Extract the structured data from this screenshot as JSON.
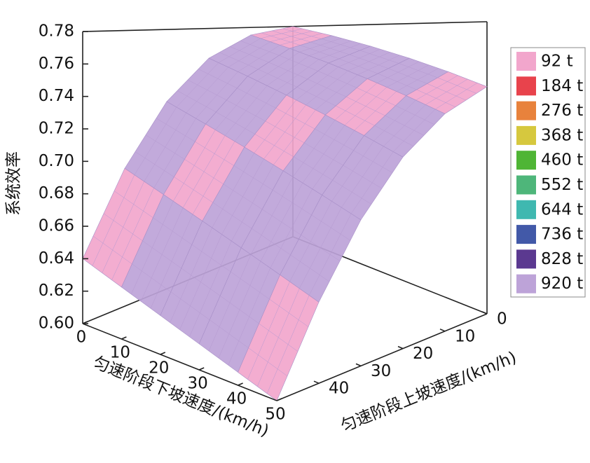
{
  "chart_data": {
    "type": "surface",
    "x_label": "匀速阶段下坡速度/(km/h)",
    "y_label": "匀速阶段上坡速度/(km/h)",
    "z_label": "系统效率",
    "x": [
      0,
      10,
      20,
      30,
      40,
      50
    ],
    "y": [
      0,
      10,
      20,
      30,
      40,
      50
    ],
    "z": [
      [
        0.78,
        0.772,
        0.764,
        0.756,
        0.748,
        0.74
      ],
      [
        0.774,
        0.766,
        0.758,
        0.75,
        0.742,
        0.734
      ],
      [
        0.758,
        0.75,
        0.742,
        0.734,
        0.726,
        0.718
      ],
      [
        0.73,
        0.722,
        0.714,
        0.706,
        0.698,
        0.69
      ],
      [
        0.69,
        0.682,
        0.674,
        0.666,
        0.658,
        0.65
      ],
      [
        0.64,
        0.632,
        0.624,
        0.616,
        0.608,
        0.6
      ]
    ],
    "xlim": [
      0,
      50
    ],
    "xticks": [
      0,
      10,
      20,
      30,
      40,
      50
    ],
    "ylim": [
      0,
      50
    ],
    "yticks": [
      0,
      10,
      20,
      30,
      40
    ],
    "zlim": [
      0.6,
      0.78
    ],
    "zticks": [
      {
        "value": 0.6,
        "label": "0.60"
      },
      0.62,
      0.64,
      0.66,
      0.68,
      {
        "value": 0.7,
        "label": "0.70"
      },
      0.72,
      0.74,
      0.76,
      0.78
    ],
    "series": [
      {
        "name": "92 t",
        "color": "#f2a6cc"
      },
      {
        "name": "184 t",
        "color": "#e8434c"
      },
      {
        "name": "276 t",
        "color": "#e8823c"
      },
      {
        "name": "368 t",
        "color": "#d6c83e"
      },
      {
        "name": "460 t",
        "color": "#4fb535"
      },
      {
        "name": "552 t",
        "color": "#4eb67a"
      },
      {
        "name": "644 t",
        "color": "#3fb8b0"
      },
      {
        "name": "736 t",
        "color": "#4259a8"
      },
      {
        "name": "828 t",
        "color": "#5b3990"
      },
      {
        "name": "920 t",
        "color": "#bda3d8"
      }
    ],
    "legend": "right"
  }
}
